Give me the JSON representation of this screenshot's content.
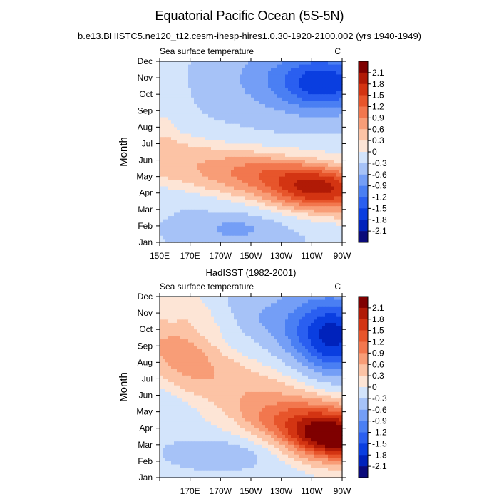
{
  "title": "Equatorial Pacific Ocean (5S-5N)",
  "subtitle": "b.e13.BHISTC5.ne120_t12.cesm-ihesp-hires1.0.30-1920-2100.002 (yrs 1940-1949)",
  "middle_title": "HadISST (1982-2001)",
  "chart_data": [
    {
      "type": "heatmap",
      "panel": "top",
      "left_label": "Sea surface temperature",
      "right_label": "C",
      "ylabel": "Month",
      "xticks": [
        "150E",
        "170E",
        "170W",
        "150W",
        "130W",
        "110W",
        "90W"
      ],
      "yticks": [
        "Jan",
        "Feb",
        "Mar",
        "Apr",
        "May",
        "Jun",
        "Jul",
        "Aug",
        "Sep",
        "Oct",
        "Nov",
        "Dec"
      ],
      "xrange_lon_east": [
        150,
        270
      ],
      "months_index_range": [
        0,
        11
      ],
      "grid": false,
      "features": [
        {
          "kind": "base",
          "value": -0.25
        },
        {
          "kind": "band",
          "lon_start": 150,
          "month_start": 5.2,
          "lon_end": 270,
          "month_end": 2.8,
          "half_width": 3.0,
          "peak": 0.3
        },
        {
          "kind": "band",
          "lon_start": 150,
          "month_start": 5.2,
          "lon_end": 270,
          "month_end": 2.8,
          "half_width": 1.8,
          "peak": 0.4
        },
        {
          "kind": "blob",
          "lon": 255,
          "month": 3.3,
          "lon_sigma": 22,
          "month_sigma": 0.9,
          "amp": 1.4
        },
        {
          "kind": "blob",
          "lon": 220,
          "month": 4.3,
          "lon_sigma": 28,
          "month_sigma": 0.85,
          "amp": 0.6
        },
        {
          "kind": "blob",
          "lon": 260,
          "month": 9.7,
          "lon_sigma": 22,
          "month_sigma": 1.2,
          "amp": -1.3
        },
        {
          "kind": "blob",
          "lon": 225,
          "month": 10.0,
          "lon_sigma": 30,
          "month_sigma": 1.6,
          "amp": -0.4
        },
        {
          "kind": "blob",
          "lon": 200,
          "month": 0.8,
          "lon_sigma": 25,
          "month_sigma": 0.8,
          "amp": -0.4
        },
        {
          "kind": "blob",
          "lon": 152,
          "month": 9.5,
          "lon_sigma": 8,
          "month_sigma": 3.0,
          "amp": 0.2
        }
      ]
    },
    {
      "type": "heatmap",
      "panel": "bottom",
      "left_label": "Sea surface temperature",
      "right_label": "C",
      "ylabel": "Month",
      "xticks": [
        "170E",
        "170W",
        "150W",
        "130W",
        "110W",
        "90W"
      ],
      "yticks": [
        "Jan",
        "Feb",
        "Mar",
        "Apr",
        "May",
        "Jun",
        "Jul",
        "Aug",
        "Sep",
        "Oct",
        "Nov",
        "Dec"
      ],
      "xrange_lon_east": [
        150,
        270
      ],
      "months_index_range": [
        0,
        11
      ],
      "grid": false,
      "features": [
        {
          "kind": "base",
          "value": -0.15
        },
        {
          "kind": "band",
          "lon_start": 150,
          "month_start": 9.0,
          "lon_end": 270,
          "month_end": 2.8,
          "half_width": 4.0,
          "peak": 0.3
        },
        {
          "kind": "band",
          "lon_start": 170,
          "month_start": 6.8,
          "lon_end": 270,
          "month_end": 2.8,
          "half_width": 2.2,
          "peak": 0.4
        },
        {
          "kind": "blob",
          "lon": 263,
          "month": 2.4,
          "lon_sigma": 20,
          "month_sigma": 1.0,
          "amp": 1.8
        },
        {
          "kind": "blob",
          "lon": 235,
          "month": 3.3,
          "lon_sigma": 30,
          "month_sigma": 1.0,
          "amp": 0.7
        },
        {
          "kind": "blob",
          "lon": 265,
          "month": 8.5,
          "lon_sigma": 18,
          "month_sigma": 1.6,
          "amp": -1.5
        },
        {
          "kind": "blob",
          "lon": 235,
          "month": 9.5,
          "lon_sigma": 35,
          "month_sigma": 1.8,
          "amp": -0.5
        },
        {
          "kind": "blob",
          "lon": 190,
          "month": 1.5,
          "lon_sigma": 28,
          "month_sigma": 0.8,
          "amp": -0.4
        },
        {
          "kind": "blob",
          "lon": 170,
          "month": 8.5,
          "lon_sigma": 15,
          "month_sigma": 2.2,
          "amp": 0.3
        }
      ]
    }
  ],
  "colorbar": {
    "labels": [
      "2.1",
      "1.8",
      "1.5",
      "1.2",
      "0.9",
      "0.6",
      "0.3",
      "0",
      "-0.3",
      "-0.6",
      "-0.9",
      "-1.2",
      "-1.5",
      "-1.8",
      "-2.1"
    ],
    "levels": [
      -2.1,
      -1.8,
      -1.5,
      -1.2,
      -0.9,
      -0.6,
      -0.3,
      0,
      0.3,
      0.6,
      0.9,
      1.2,
      1.5,
      1.8,
      2.1
    ],
    "colors": [
      "#0a0a7a",
      "#0022bb",
      "#0a3ee0",
      "#2a5ff0",
      "#4a7ff3",
      "#749ef6",
      "#a6c2f7",
      "#d3e4fb",
      "#fde5d6",
      "#fcc3a5",
      "#f89d77",
      "#f2774e",
      "#e7552b",
      "#d33412",
      "#b01a06",
      "#7f0000"
    ]
  }
}
